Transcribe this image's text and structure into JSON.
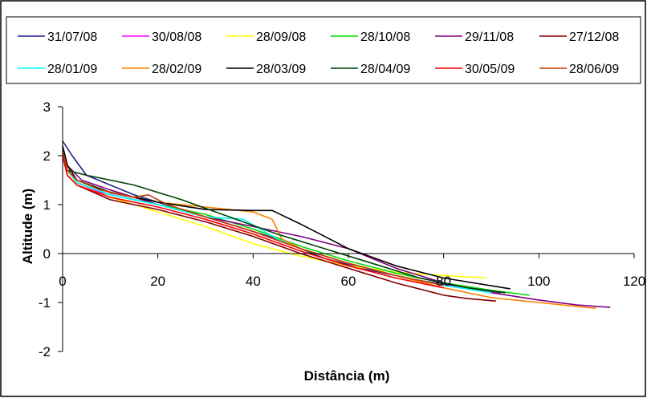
{
  "chart_data": {
    "type": "line",
    "title": "",
    "xlabel": "Distância (m)",
    "ylabel": "Altitude (m)",
    "xlim": [
      0,
      120
    ],
    "ylim": [
      -2,
      3
    ],
    "xticks": [
      0,
      20,
      40,
      60,
      80,
      100,
      120
    ],
    "yticks": [
      -2,
      -1,
      0,
      1,
      2,
      3
    ],
    "grid": false,
    "legend_position": "top",
    "series": [
      {
        "name": "31/07/08",
        "color": "#1f1f8f",
        "x": [
          0,
          2,
          5,
          15,
          25,
          35,
          45,
          55,
          65,
          75,
          85,
          92
        ],
        "y": [
          2.3,
          2.0,
          1.6,
          1.2,
          0.9,
          0.6,
          0.3,
          -0.1,
          -0.35,
          -0.55,
          -0.7,
          -0.8
        ]
      },
      {
        "name": "30/08/08",
        "color": "#ff00ff",
        "x": [
          0,
          1,
          3,
          8,
          20,
          30,
          40,
          50,
          60,
          70,
          80,
          88
        ],
        "y": [
          2.1,
          1.7,
          1.45,
          1.25,
          1.0,
          0.75,
          0.45,
          0.1,
          -0.2,
          -0.45,
          -0.65,
          -0.75
        ]
      },
      {
        "name": "28/09/08",
        "color": "#ffff00",
        "x": [
          0,
          1,
          3,
          10,
          20,
          30,
          40,
          50,
          60,
          70,
          80,
          89
        ],
        "y": [
          2.0,
          1.6,
          1.4,
          1.15,
          0.85,
          0.55,
          0.2,
          -0.05,
          -0.25,
          -0.38,
          -0.45,
          -0.5
        ]
      },
      {
        "name": "28/10/08",
        "color": "#00dd00",
        "x": [
          0,
          1,
          3,
          10,
          20,
          30,
          40,
          50,
          60,
          70,
          80,
          90,
          98
        ],
        "y": [
          2.1,
          1.7,
          1.45,
          1.2,
          1.0,
          0.8,
          0.5,
          0.15,
          -0.15,
          -0.4,
          -0.6,
          -0.75,
          -0.85
        ]
      },
      {
        "name": "29/11/08",
        "color": "#800080",
        "x": [
          0,
          1,
          4,
          10,
          20,
          30,
          40,
          50,
          60,
          70,
          80,
          90,
          100,
          108,
          115
        ],
        "y": [
          2.2,
          1.8,
          1.5,
          1.3,
          1.0,
          0.75,
          0.55,
          0.35,
          0.1,
          -0.3,
          -0.6,
          -0.8,
          -0.95,
          -1.05,
          -1.1
        ]
      },
      {
        "name": "27/12/08",
        "color": "#800000",
        "x": [
          0,
          1,
          3,
          10,
          20,
          30,
          40,
          50,
          60,
          70,
          80,
          85,
          91
        ],
        "y": [
          2.0,
          1.6,
          1.4,
          1.1,
          0.9,
          0.65,
          0.35,
          0.0,
          -0.3,
          -0.6,
          -0.85,
          -0.92,
          -0.97
        ]
      },
      {
        "name": "28/01/09",
        "color": "#00ffff",
        "x": [
          0,
          1,
          3,
          10,
          20,
          30,
          38,
          45,
          50,
          60,
          70,
          80,
          90
        ],
        "y": [
          2.1,
          1.7,
          1.45,
          1.2,
          1.0,
          0.75,
          0.7,
          0.3,
          0.1,
          -0.2,
          -0.45,
          -0.65,
          -0.8
        ]
      },
      {
        "name": "28/02/09",
        "color": "#ff7f00",
        "x": [
          0,
          1,
          3,
          10,
          20,
          30,
          40,
          44,
          46,
          50,
          60,
          70,
          80,
          90,
          100,
          112
        ],
        "y": [
          2.2,
          1.8,
          1.5,
          1.25,
          1.05,
          0.95,
          0.85,
          0.7,
          0.3,
          0.1,
          -0.2,
          -0.45,
          -0.7,
          -0.9,
          -1.0,
          -1.12
        ]
      },
      {
        "name": "28/03/09",
        "color": "#000000",
        "x": [
          0,
          1,
          3,
          10,
          20,
          30,
          40,
          44,
          50,
          55,
          60,
          70,
          80,
          94
        ],
        "y": [
          2.2,
          1.8,
          1.5,
          1.25,
          1.05,
          0.9,
          0.88,
          0.88,
          0.6,
          0.35,
          0.1,
          -0.25,
          -0.5,
          -0.72
        ]
      },
      {
        "name": "28/04/09",
        "color": "#004000",
        "x": [
          0,
          1,
          5,
          15,
          25,
          35,
          45,
          55,
          65,
          75,
          85,
          93
        ],
        "y": [
          2.0,
          1.7,
          1.6,
          1.4,
          1.1,
          0.75,
          0.4,
          0.1,
          -0.2,
          -0.5,
          -0.7,
          -0.8
        ]
      },
      {
        "name": "30/05/09",
        "color": "#ff0000",
        "x": [
          0,
          1,
          3,
          10,
          20,
          30,
          40,
          50,
          60,
          70,
          80
        ],
        "y": [
          2.0,
          1.6,
          1.4,
          1.15,
          0.95,
          0.7,
          0.4,
          0.05,
          -0.25,
          -0.5,
          -0.7
        ]
      },
      {
        "name": "28/06/09",
        "color": "#c04000",
        "x": [
          0,
          1,
          3,
          8,
          15,
          18,
          22,
          30,
          40,
          50,
          60,
          70,
          80
        ],
        "y": [
          2.1,
          1.7,
          1.5,
          1.3,
          1.15,
          1.2,
          1.0,
          0.75,
          0.45,
          0.1,
          -0.2,
          -0.45,
          -0.65
        ]
      }
    ]
  }
}
